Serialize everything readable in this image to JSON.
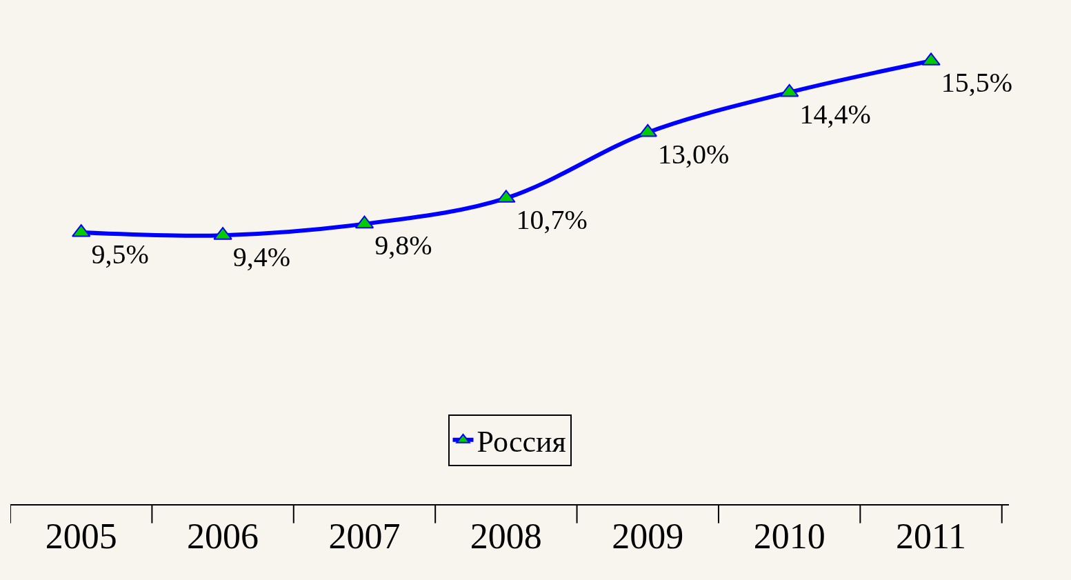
{
  "chart_data": {
    "type": "line",
    "categories": [
      "2005",
      "2006",
      "2007",
      "2008",
      "2009",
      "2010",
      "2011"
    ],
    "series": [
      {
        "name": "Россия",
        "color": "#0000ff",
        "values": [
          9.5,
          9.4,
          9.8,
          10.7,
          13.0,
          14.4,
          15.5
        ],
        "value_labels": [
          "9,5%",
          "9,4%",
          "9,8%",
          "10,7%",
          "13,0%",
          "14,4%",
          "15,5%"
        ]
      }
    ],
    "marker": "triangle",
    "legend": "bottom",
    "grid": false,
    "tick_labels": "x"
  }
}
